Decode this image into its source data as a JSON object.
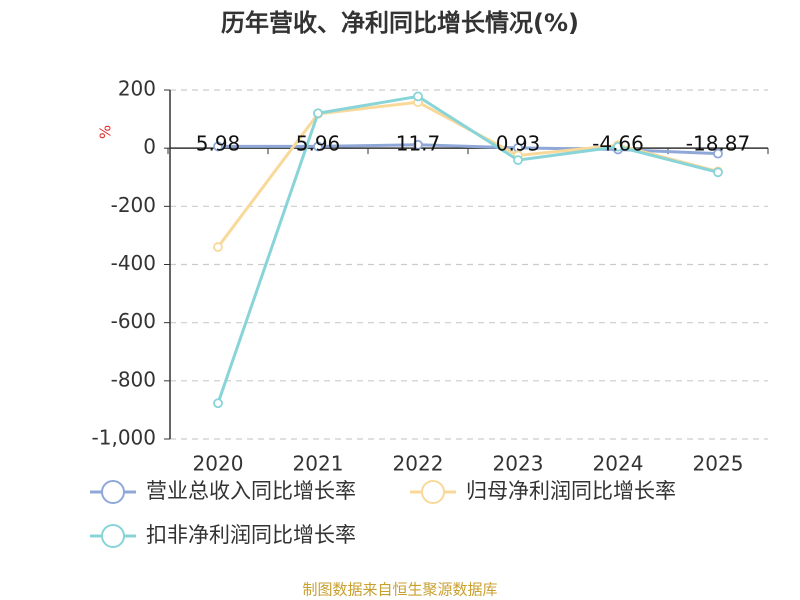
{
  "chart_data": {
    "type": "line",
    "title": "历年营收、净利同比增长情况(%)",
    "y_label": "%",
    "categories": [
      "2020",
      "2021",
      "2022",
      "2023",
      "2024",
      "2025"
    ],
    "series": [
      {
        "name": "营业总收入同比增长率",
        "color": "#8fa8d8",
        "values": [
          5.98,
          5.96,
          11.7,
          0.93,
          -4.66,
          -18.87
        ],
        "show_labels": true
      },
      {
        "name": "归母净利润同比增长率",
        "color": "#f9d99a",
        "values": [
          -340,
          118,
          158,
          -25,
          10,
          -80
        ]
      },
      {
        "name": "扣非净利润同比增长率",
        "color": "#88d4d8",
        "values": [
          -877,
          120,
          178,
          -41,
          5,
          -83
        ]
      }
    ],
    "ylim": [
      -1000,
      200
    ],
    "yticks": [
      {
        "value": -1000,
        "label": "-1,000"
      },
      -800,
      -600,
      -400,
      -200,
      0,
      200
    ],
    "grid": true,
    "source": "制图数据来自恒生聚源数据库"
  }
}
